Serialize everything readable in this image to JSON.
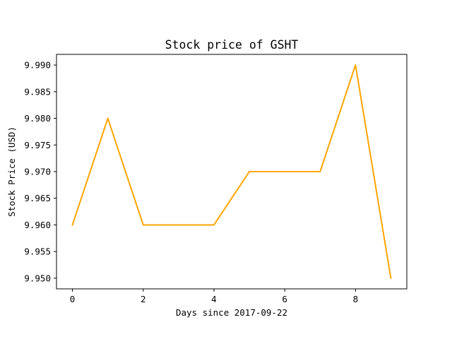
{
  "chart_data": {
    "type": "line",
    "title": "Stock price of GSHT",
    "xlabel": "Days since 2017-09-22",
    "ylabel": "Stock Price (USD)",
    "x": [
      0,
      1,
      2,
      3,
      4,
      5,
      6,
      7,
      8,
      9
    ],
    "series": [
      {
        "values": [
          9.96,
          9.98,
          9.96,
          9.96,
          9.96,
          9.97,
          9.97,
          9.97,
          9.99,
          9.95
        ],
        "color": "#ffa500"
      }
    ],
    "xlim": [
      -0.45,
      9.45
    ],
    "ylim": [
      9.948,
      9.992
    ],
    "xticks": [
      0,
      2,
      4,
      6,
      8
    ],
    "xtick_labels": [
      "0",
      "2",
      "4",
      "6",
      "8"
    ],
    "yticks": [
      9.95,
      9.955,
      9.96,
      9.965,
      9.97,
      9.975,
      9.98,
      9.985,
      9.99
    ],
    "ytick_labels": [
      "9.950",
      "9.955",
      "9.960",
      "9.965",
      "9.970",
      "9.975",
      "9.980",
      "9.985",
      "9.990"
    ],
    "grid": false,
    "legend": false
  }
}
